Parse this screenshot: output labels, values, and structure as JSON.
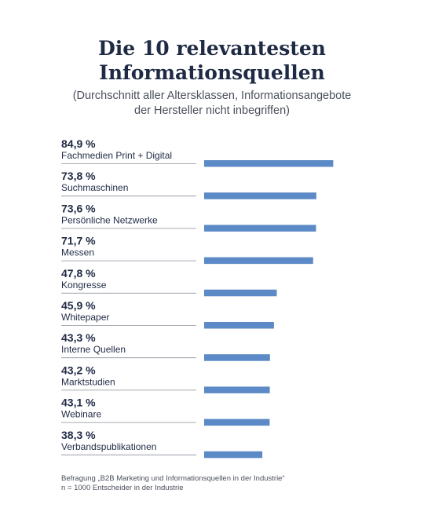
{
  "title_lines": [
    "Die 10 relevantesten",
    "Informationsquellen"
  ],
  "subtitle_lines": [
    "(Durchschnitt aller Altersklassen, Informationsangebote",
    "der Hersteller nicht inbegriffen)"
  ],
  "chart_data": {
    "type": "bar",
    "orientation": "horizontal",
    "categories": [
      "Fachmedien Print + Digital",
      "Suchmaschinen",
      "Persönliche Netzwerke",
      "Messen",
      "Kongresse",
      "Whitepaper",
      "Interne Quellen",
      "Marktstudien",
      "Webinare",
      "Verbandspublikationen"
    ],
    "values": [
      84.9,
      73.8,
      73.6,
      71.7,
      47.8,
      45.9,
      43.3,
      43.2,
      43.1,
      38.3
    ],
    "value_labels": [
      "84,9 %",
      "73,8 %",
      "73,6 %",
      "71,7 %",
      "47,8 %",
      "45,9 %",
      "43,3 %",
      "43,2 %",
      "43,1 %",
      "38,3 %"
    ],
    "unit": "%",
    "xlim": [
      0,
      100
    ],
    "grid": false,
    "legend": "none",
    "bar_color": "#5b8ac6",
    "label_color": "#1f2a44",
    "divider_color": "#8a8f99"
  },
  "footnote_lines": [
    "Befragung „B2B Marketing und Informationsquellen in der Industrie“",
    "n = 1000 Entscheider in der Industrie"
  ]
}
